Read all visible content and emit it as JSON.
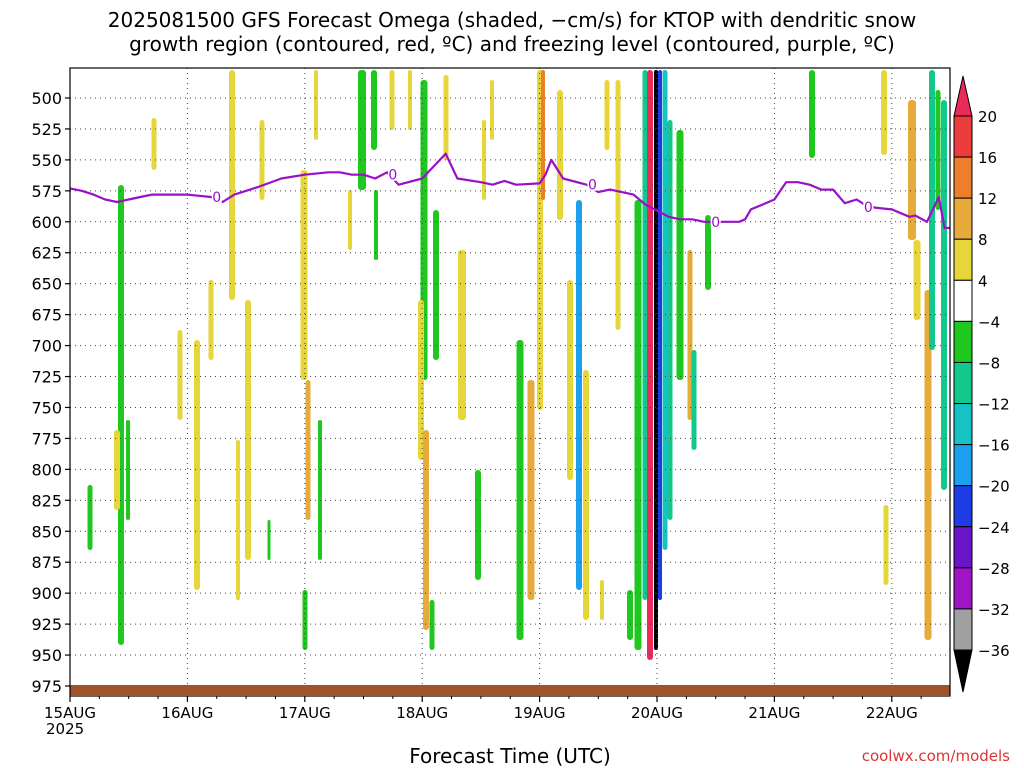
{
  "title_line1": "2025081500 GFS Forecast Omega (shaded, −cm/s) for KTOP with dendritic snow",
  "title_line2": "growth region (contoured, red, ºC) and freezing level (contoured, purple, ºC)",
  "xlabel": "Forecast Time (UTC)",
  "year_label": "2025",
  "credit": "coolwx.com/models",
  "chart_data": {
    "type": "heatmap",
    "title": "2025081500 GFS Forecast Omega (shaded, −cm/s) for KTOP with dendritic snow growth region (contoured, red, ºC) and freezing level (contoured, purple, ºC)",
    "xlabel": "Forecast Time (UTC)",
    "ylabel": "",
    "x_range_days": [
      0,
      7.5
    ],
    "x_ticks": [
      "15AUG",
      "16AUG",
      "17AUG",
      "18AUG",
      "19AUG",
      "20AUG",
      "21AUG",
      "22AUG"
    ],
    "y_range": [
      985,
      470
    ],
    "y_ticks": [
      500,
      525,
      550,
      575,
      600,
      625,
      650,
      675,
      700,
      725,
      750,
      775,
      800,
      825,
      850,
      875,
      900,
      925,
      950,
      975
    ],
    "grid": true,
    "colorbar": {
      "ticks": [
        "20",
        "16",
        "12",
        "8",
        "4",
        "−4",
        "−8",
        "−12",
        "−16",
        "−20",
        "−24",
        "−28",
        "−32",
        "−36"
      ],
      "colors": [
        "#ec2a5a",
        "#ec3c3c",
        "#ee7f2a",
        "#e6ab3a",
        "#e6d63a",
        "#ffffff",
        "#1ec81e",
        "#12c88c",
        "#16c2c2",
        "#1aa0ee",
        "#1e3ce6",
        "#6a14c8",
        "#a014c8",
        "#a0a0a0"
      ]
    },
    "freezing_level": {
      "label": "0",
      "color": "#9a10c8",
      "points": [
        [
          0.0,
          573
        ],
        [
          0.1,
          575
        ],
        [
          0.2,
          578
        ],
        [
          0.3,
          582
        ],
        [
          0.4,
          584
        ],
        [
          0.5,
          582
        ],
        [
          0.6,
          580
        ],
        [
          0.7,
          578
        ],
        [
          0.8,
          578
        ],
        [
          0.9,
          578
        ],
        [
          1.0,
          578
        ],
        [
          1.1,
          579
        ],
        [
          1.2,
          580
        ],
        [
          1.3,
          584
        ],
        [
          1.4,
          578
        ],
        [
          1.6,
          572
        ],
        [
          1.8,
          565
        ],
        [
          2.0,
          562
        ],
        [
          2.2,
          560
        ],
        [
          2.3,
          560
        ],
        [
          2.4,
          562
        ],
        [
          2.5,
          562
        ],
        [
          2.6,
          565
        ],
        [
          2.7,
          560
        ],
        [
          2.8,
          570
        ],
        [
          3.0,
          565
        ],
        [
          3.1,
          555
        ],
        [
          3.2,
          545
        ],
        [
          3.3,
          565
        ],
        [
          3.5,
          568
        ],
        [
          3.6,
          570
        ],
        [
          3.7,
          567
        ],
        [
          3.8,
          570
        ],
        [
          4.0,
          569
        ],
        [
          4.05,
          562
        ],
        [
          4.1,
          550
        ],
        [
          4.2,
          565
        ],
        [
          4.4,
          570
        ],
        [
          4.5,
          576
        ],
        [
          4.6,
          574
        ],
        [
          4.8,
          578
        ],
        [
          4.9,
          586
        ],
        [
          5.0,
          591
        ],
        [
          5.1,
          596
        ],
        [
          5.2,
          598
        ],
        [
          5.3,
          598
        ],
        [
          5.4,
          600
        ],
        [
          5.5,
          600
        ],
        [
          5.7,
          600
        ],
        [
          5.75,
          598
        ],
        [
          5.8,
          590
        ],
        [
          5.9,
          586
        ],
        [
          6.0,
          582
        ],
        [
          6.1,
          568
        ],
        [
          6.2,
          568
        ],
        [
          6.3,
          570
        ],
        [
          6.4,
          574
        ],
        [
          6.5,
          574
        ],
        [
          6.6,
          585
        ],
        [
          6.7,
          582
        ],
        [
          6.8,
          588
        ],
        [
          7.0,
          590
        ],
        [
          7.15,
          596
        ],
        [
          7.2,
          595
        ],
        [
          7.3,
          600
        ],
        [
          7.4,
          580
        ],
        [
          7.45,
          605
        ],
        [
          7.5,
          605
        ]
      ]
    },
    "dendritic_region_color": "#e62a2a"
  }
}
